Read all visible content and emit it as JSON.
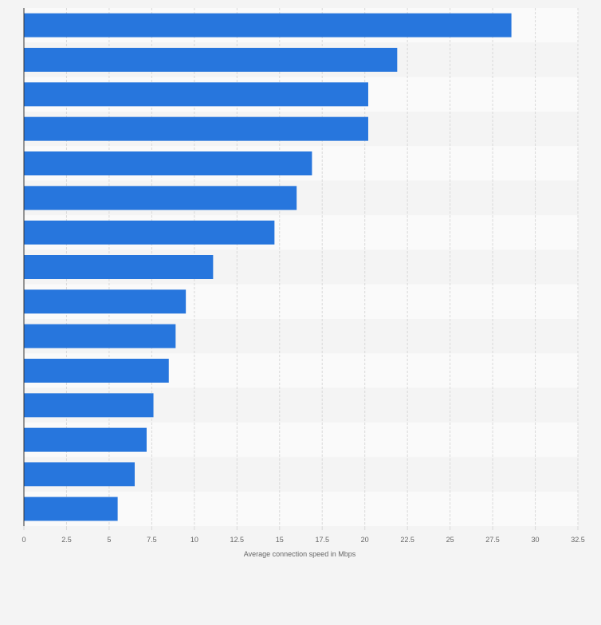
{
  "chart_data": {
    "type": "bar",
    "orientation": "horizontal",
    "categories": [
      "",
      "",
      "",
      "",
      "",
      "",
      "",
      "",
      "",
      "",
      "",
      "",
      "",
      "",
      ""
    ],
    "values": [
      28.6,
      21.9,
      20.2,
      20.2,
      16.9,
      16.0,
      14.7,
      11.1,
      9.5,
      8.9,
      8.5,
      7.6,
      7.2,
      6.5,
      5.5
    ],
    "title": "",
    "xlabel": "Average connection speed in Mbps",
    "ylabel": "",
    "xlim": [
      0,
      32.5
    ],
    "xticks": [
      "0",
      "2.5",
      "5",
      "7.5",
      "10",
      "12.5",
      "15",
      "17.5",
      "20",
      "22.5",
      "25",
      "27.5",
      "30",
      "32.5"
    ],
    "grid": "vertical dashed",
    "legend": "none",
    "colors": {
      "bar": "#2776dd",
      "band_light": "#fafafa",
      "band_dark": "#f4f4f4",
      "grid": "#d9d9d9",
      "axis": "#333333",
      "tick_text": "#666666"
    }
  }
}
